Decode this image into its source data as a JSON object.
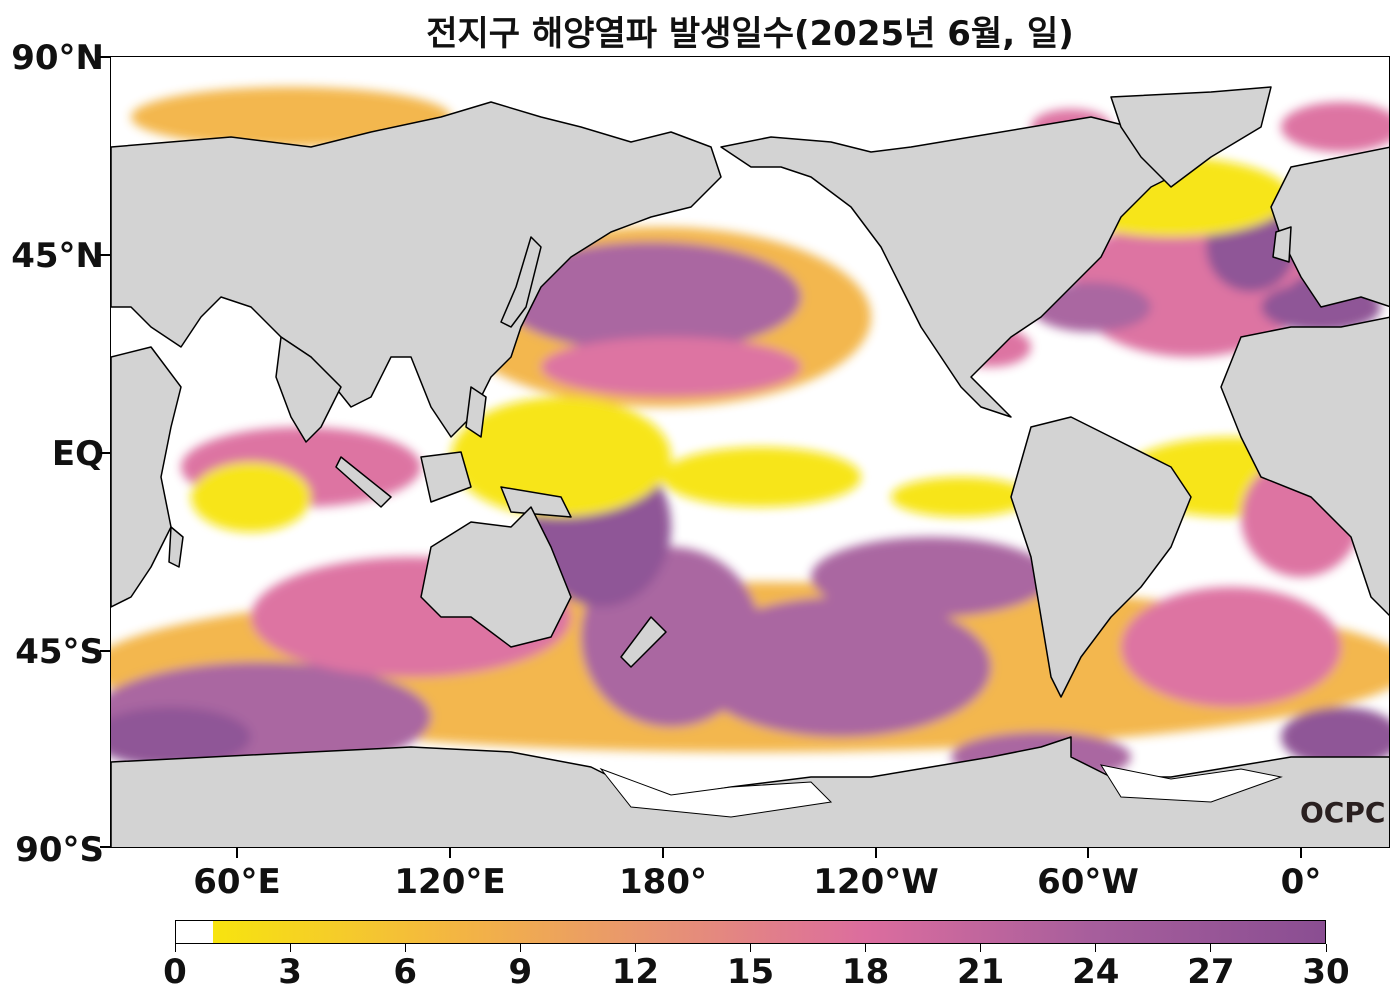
{
  "title": "전지구 해양열파 발생일수(2025년 6월, 일)",
  "logo_text": "OCPC",
  "axes": {
    "y_labels": [
      "90°N",
      "45°N",
      "EQ",
      "45°S",
      "90°S"
    ],
    "x_labels": [
      "60°E",
      "120°E",
      "180°",
      "120°W",
      "60°W",
      "0°"
    ]
  },
  "colorbar": {
    "tick_labels": [
      "0",
      "3",
      "6",
      "9",
      "12",
      "15",
      "18",
      "21",
      "24",
      "27",
      "30"
    ],
    "min": 0,
    "max": 30,
    "colors": {
      "zero": "#ffffff",
      "low": "#f7e40f",
      "mid_low": "#f3b444",
      "mid": "#e79373",
      "mid_high": "#dc6d9e",
      "high": "#a65e9c",
      "max": "#8a4e92"
    }
  },
  "map": {
    "land_color": "#d3d3d3",
    "ocean_no_event_color": "#ffffff",
    "coastline_color": "#000000"
  }
}
